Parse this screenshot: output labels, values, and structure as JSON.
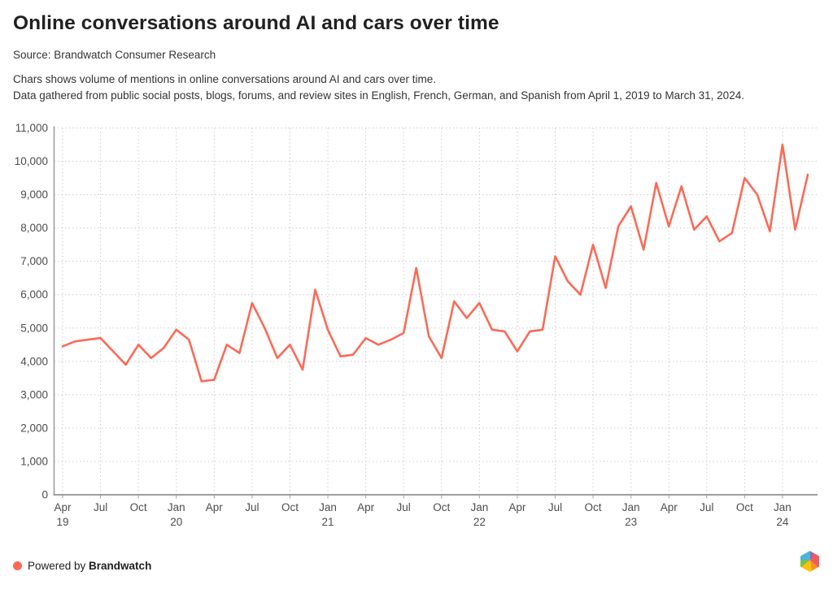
{
  "header": {
    "title": "Online conversations around AI and cars over time",
    "source": "Source: Brandwatch Consumer Research",
    "desc1": "Chars shows volume of mentions in online conversations around AI and cars over time.",
    "desc2": "Data gathered from public social posts, blogs, forums, and review sites in English, French, German, and Spanish from April 1, 2019 to March 31, 2024."
  },
  "chart_data": {
    "type": "line",
    "title": "Online conversations around AI and cars over time",
    "series_name": "Volume of mentions",
    "x": [
      "Apr 19",
      "May 19",
      "Jun 19",
      "Jul 19",
      "Aug 19",
      "Sep 19",
      "Oct 19",
      "Nov 19",
      "Dec 19",
      "Jan 20",
      "Feb 20",
      "Mar 20",
      "Apr 20",
      "May 20",
      "Jun 20",
      "Jul 20",
      "Aug 20",
      "Sep 20",
      "Oct 20",
      "Nov 20",
      "Dec 20",
      "Jan 21",
      "Feb 21",
      "Mar 21",
      "Apr 21",
      "May 21",
      "Jun 21",
      "Jul 21",
      "Aug 21",
      "Sep 21",
      "Oct 21",
      "Nov 21",
      "Dec 21",
      "Jan 22",
      "Feb 22",
      "Mar 22",
      "Apr 22",
      "May 22",
      "Jun 22",
      "Jul 22",
      "Aug 22",
      "Sep 22",
      "Oct 22",
      "Nov 22",
      "Dec 22",
      "Jan 23",
      "Feb 23",
      "Mar 23",
      "Apr 23",
      "May 23",
      "Jun 23",
      "Jul 23",
      "Aug 23",
      "Sep 23",
      "Oct 23",
      "Nov 23",
      "Dec 23",
      "Jan 24",
      "Feb 24",
      "Mar 24"
    ],
    "values": [
      4450,
      4600,
      4650,
      4700,
      4300,
      3900,
      4500,
      4100,
      4400,
      4950,
      4650,
      3400,
      3450,
      4500,
      4250,
      5750,
      5000,
      4100,
      4500,
      3750,
      6150,
      4950,
      4150,
      4200,
      4700,
      4500,
      4650,
      4850,
      6800,
      4750,
      4100,
      5800,
      5300,
      5750,
      4950,
      4900,
      4300,
      4900,
      4950,
      7150,
      6400,
      6000,
      7500,
      6200,
      8050,
      8650,
      7350,
      9350,
      8050,
      9250,
      7950,
      8350,
      7600,
      7850,
      9500,
      9000,
      7900,
      10500,
      7950,
      9600
    ],
    "ylim": [
      0,
      11000
    ],
    "ytick_step": 1000,
    "ytick_labels": [
      "0",
      "1,000",
      "2,000",
      "3,000",
      "4,000",
      "5,000",
      "6,000",
      "7,000",
      "8,000",
      "9,000",
      "10,000",
      "11,000"
    ],
    "xticks": [
      [
        "Apr",
        "19"
      ],
      [
        "Jul",
        ""
      ],
      [
        "Oct",
        ""
      ],
      [
        "Jan",
        "20"
      ],
      [
        "Apr",
        ""
      ],
      [
        "Jul",
        ""
      ],
      [
        "Oct",
        ""
      ],
      [
        "Jan",
        "21"
      ],
      [
        "Apr",
        ""
      ],
      [
        "Jul",
        ""
      ],
      [
        "Oct",
        ""
      ],
      [
        "Jan",
        "22"
      ],
      [
        "Apr",
        ""
      ],
      [
        "Jul",
        ""
      ],
      [
        "Oct",
        ""
      ],
      [
        "Jan",
        "23"
      ],
      [
        "Apr",
        ""
      ],
      [
        "Jul",
        ""
      ],
      [
        "Oct",
        ""
      ],
      [
        "Jan",
        "24"
      ]
    ],
    "xtick_interval_months": 3,
    "grid": "dotted",
    "legend": "none",
    "line_color": "#F96B57",
    "grid_color": "#CCCCCC",
    "axis_color": "#9E9E9E",
    "tick_label_color": "#4D4D4D"
  },
  "footer": {
    "powered_by": "Powered by ",
    "brand": "Brandwatch",
    "dot_color": "#F96B57",
    "logo_colors": [
      "#4FB3D9",
      "#8E6FAD",
      "#EF5B62",
      "#F7941D",
      "#FFC20E",
      "#7DC242"
    ]
  }
}
